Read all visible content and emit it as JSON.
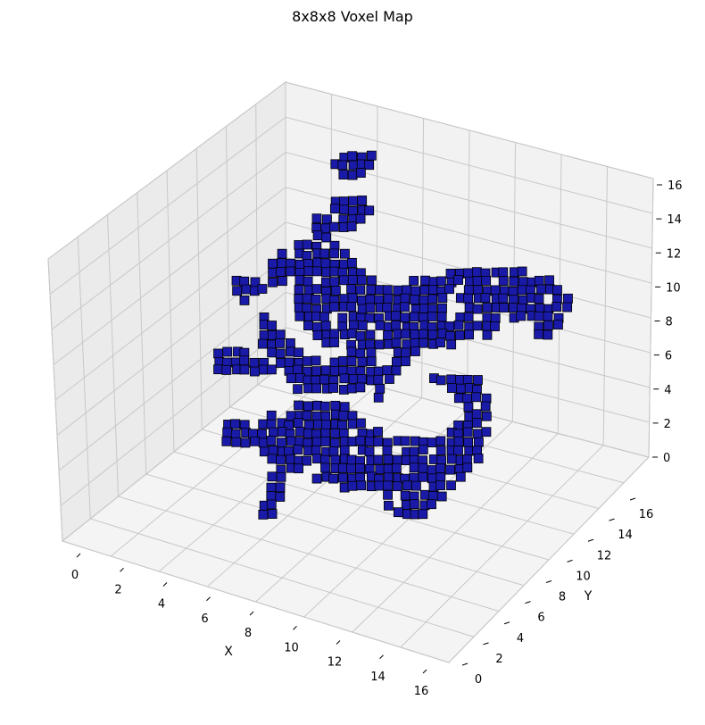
{
  "chart_data": {
    "type": "voxel",
    "title": "8x8x8 Voxel Map",
    "xlabel": "X",
    "ylabel": "Y",
    "zlabel": "",
    "xlim": [
      0,
      16
    ],
    "ylim": [
      0,
      16
    ],
    "zlim": [
      0,
      16
    ],
    "x_ticks": [
      "0",
      "2",
      "4",
      "6",
      "8",
      "10",
      "12",
      "14",
      "16"
    ],
    "y_ticks": [
      "0",
      "2",
      "4",
      "6",
      "8",
      "10",
      "12",
      "14",
      "16"
    ],
    "z_ticks": [
      "0",
      "2",
      "4",
      "6",
      "8",
      "10",
      "12",
      "14",
      "16"
    ],
    "grid": true,
    "voxel_face_color": "#1a1aa8",
    "voxel_edge_color": "#000000",
    "pane_color": "#f2f2f2",
    "grid_color": "#c8c8c8",
    "rendering_note": "Voxel cloud rendered as a porous cube-like lattice of filled cells"
  }
}
